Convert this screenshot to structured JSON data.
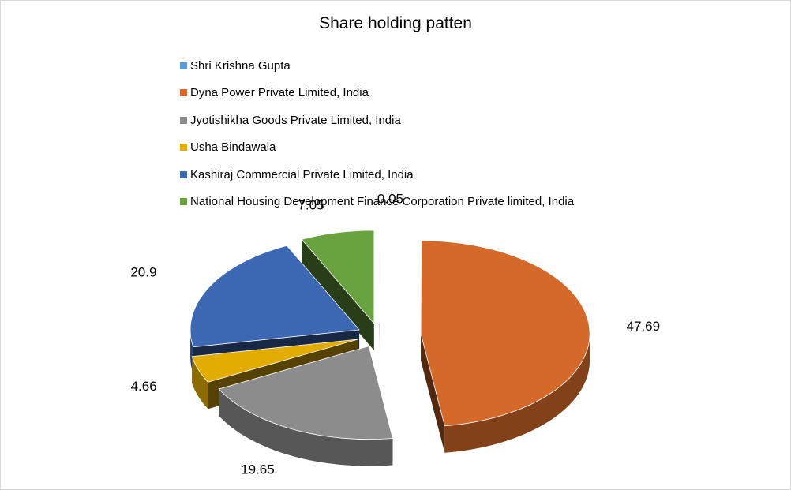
{
  "chart_data": {
    "type": "pie",
    "title": "Share holding patten",
    "legend_position": "top",
    "categories": [
      "Shri Krishna Gupta",
      "Dyna Power Private Limited, India",
      "Jyotishikha Goods Private Limited, India",
      "Usha Bindawala",
      "Kashiraj Commercial Private Limited, India",
      "National Housing Development Finance Corporation Private limited, India"
    ],
    "values": [
      0.05,
      47.69,
      19.65,
      4.66,
      20.9,
      7.05
    ],
    "value_labels": [
      "0.05",
      "47.69",
      "19.65",
      "4.66",
      "20.9",
      "7.05"
    ],
    "colors": [
      "#5b9bd5",
      "#d4692a",
      "#8c8c8c",
      "#e2ad00",
      "#3c67b2",
      "#69a340"
    ],
    "exploded": true,
    "three_d": true
  }
}
